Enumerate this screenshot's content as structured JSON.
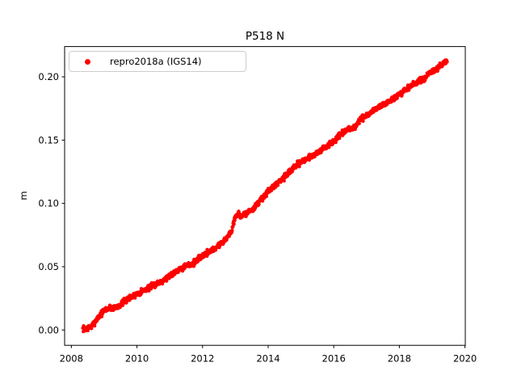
{
  "window": {
    "title": "P518 N"
  },
  "chart_data": {
    "type": "scatter",
    "title": "P518 N",
    "xlabel": "",
    "ylabel": "m",
    "grid": false,
    "xlim": [
      2007.795,
      2020.01
    ],
    "ylim": [
      -0.0121,
      0.2239
    ],
    "xticks": [
      2008,
      2010,
      2012,
      2014,
      2016,
      2018,
      2020
    ],
    "xtick_labels": [
      "2008",
      "2010",
      "2012",
      "2014",
      "2016",
      "2018",
      "2020"
    ],
    "ytick_values": [
      0.0,
      0.05,
      0.1,
      0.15,
      0.2
    ],
    "ytick_labels": [
      "0.00",
      "0.05",
      "0.10",
      "0.15",
      "0.20"
    ],
    "legend": {
      "position": "upper left",
      "entries": [
        {
          "label": "repro2018a (IGS14)",
          "marker": "dot",
          "color": "#ff0000"
        }
      ]
    },
    "series": [
      {
        "name": "repro2018a (IGS14)",
        "color": "#ff0000",
        "marker": "dot",
        "marker_radius_px": 2.2,
        "t_start": 2008.35,
        "t_end": 2019.46,
        "sample_step_years": 0.008,
        "noise_sigma_m": 0.0011,
        "seed": 7,
        "anchors": [
          [
            2008.35,
            0.001
          ],
          [
            2008.5,
            0.0015
          ],
          [
            2008.62,
            0.0028
          ],
          [
            2008.8,
            0.0095
          ],
          [
            2009.0,
            0.0155
          ],
          [
            2009.12,
            0.0172
          ],
          [
            2009.38,
            0.018
          ],
          [
            2009.6,
            0.0222
          ],
          [
            2009.85,
            0.0262
          ],
          [
            2010.0,
            0.0285
          ],
          [
            2010.4,
            0.0338
          ],
          [
            2010.85,
            0.0402
          ],
          [
            2011.25,
            0.0478
          ],
          [
            2011.5,
            0.0506
          ],
          [
            2011.7,
            0.0525
          ],
          [
            2012.05,
            0.0595
          ],
          [
            2012.45,
            0.0658
          ],
          [
            2012.7,
            0.0715
          ],
          [
            2012.88,
            0.078
          ],
          [
            2013.0,
            0.09
          ],
          [
            2013.1,
            0.0915
          ],
          [
            2013.2,
            0.0898
          ],
          [
            2013.35,
            0.0925
          ],
          [
            2013.55,
            0.0957
          ],
          [
            2013.9,
            0.1068
          ],
          [
            2014.2,
            0.114
          ],
          [
            2014.45,
            0.12
          ],
          [
            2014.7,
            0.1262
          ],
          [
            2014.95,
            0.132
          ],
          [
            2015.2,
            0.1358
          ],
          [
            2015.45,
            0.1392
          ],
          [
            2015.7,
            0.1435
          ],
          [
            2015.95,
            0.148
          ],
          [
            2016.2,
            0.154
          ],
          [
            2016.45,
            0.1585
          ],
          [
            2016.65,
            0.1602
          ],
          [
            2016.8,
            0.1658
          ],
          [
            2016.95,
            0.1685
          ],
          [
            2017.2,
            0.1732
          ],
          [
            2017.4,
            0.1765
          ],
          [
            2017.65,
            0.18
          ],
          [
            2017.9,
            0.184
          ],
          [
            2018.05,
            0.1862
          ],
          [
            2018.18,
            0.1895
          ],
          [
            2018.4,
            0.1936
          ],
          [
            2018.65,
            0.1968
          ],
          [
            2018.9,
            0.2021
          ],
          [
            2019.15,
            0.2066
          ],
          [
            2019.35,
            0.2105
          ],
          [
            2019.46,
            0.2122
          ]
        ]
      }
    ],
    "colors": {
      "points": "#ff0000",
      "axes": "#000000",
      "text": "#000000",
      "legend_border": "#cccccc"
    }
  }
}
